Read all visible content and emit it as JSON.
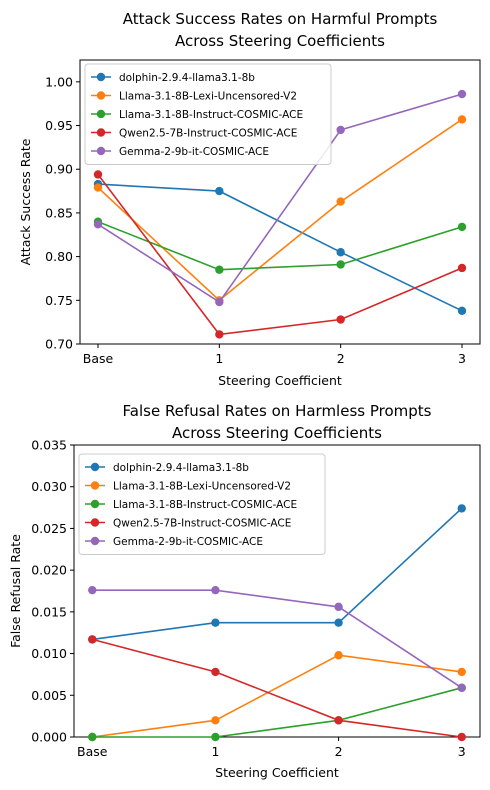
{
  "chart_data": [
    {
      "type": "line",
      "title": [
        "Attack Success Rates on Harmful Prompts",
        "Across Steering Coefficients"
      ],
      "xlabel": "Steering Coefficient",
      "ylabel": "Attack Success Rate",
      "categories": [
        "Base",
        "1",
        "2",
        "3"
      ],
      "ylim": [
        0.7,
        1.025
      ],
      "yticks": [
        0.7,
        0.75,
        0.8,
        0.85,
        0.9,
        0.95,
        1.0
      ],
      "ytick_labels": [
        "0.70",
        "0.75",
        "0.80",
        "0.85",
        "0.90",
        "0.95",
        "1.00"
      ],
      "legend_position": "top-left",
      "grid": false,
      "series": [
        {
          "name": "dolphin-2.9.4-llama3.1-8b",
          "color": "#1f77b4",
          "values": [
            0.883,
            0.875,
            0.805,
            0.738
          ]
        },
        {
          "name": "Llama-3.1-8B-Lexi-Uncensored-V2",
          "color": "#ff7f0e",
          "values": [
            0.879,
            0.75,
            0.863,
            0.957
          ]
        },
        {
          "name": "Llama-3.1-8B-Instruct-COSMIC-ACE",
          "color": "#2ca02c",
          "values": [
            0.84,
            0.785,
            0.791,
            0.834
          ]
        },
        {
          "name": "Qwen2.5-7B-Instruct-COSMIC-ACE",
          "color": "#d62728",
          "values": [
            0.894,
            0.711,
            0.728,
            0.787
          ]
        },
        {
          "name": "Gemma-2-9b-it-COSMIC-ACE",
          "color": "#9467bd",
          "values": [
            0.837,
            0.748,
            0.945,
            0.986
          ]
        }
      ]
    },
    {
      "type": "line",
      "title": [
        "False Refusal Rates on Harmless Prompts",
        "Across Steering Coefficients"
      ],
      "xlabel": "Steering Coefficient",
      "ylabel": "False Refusal Rate",
      "categories": [
        "Base",
        "1",
        "2",
        "3"
      ],
      "ylim": [
        0.0,
        0.035
      ],
      "yticks": [
        0.0,
        0.005,
        0.01,
        0.015,
        0.02,
        0.025,
        0.03,
        0.035
      ],
      "ytick_labels": [
        "0.000",
        "0.005",
        "0.010",
        "0.015",
        "0.020",
        "0.025",
        "0.030",
        "0.035"
      ],
      "legend_position": "top-left",
      "grid": false,
      "series": [
        {
          "name": "dolphin-2.9.4-llama3.1-8b",
          "color": "#1f77b4",
          "values": [
            0.0117,
            0.0137,
            0.0137,
            0.0274
          ]
        },
        {
          "name": "Llama-3.1-8B-Lexi-Uncensored-V2",
          "color": "#ff7f0e",
          "values": [
            0.0,
            0.002,
            0.0098,
            0.0078
          ]
        },
        {
          "name": "Llama-3.1-8B-Instruct-COSMIC-ACE",
          "color": "#2ca02c",
          "values": [
            0.0,
            0.0,
            0.002,
            0.0059
          ]
        },
        {
          "name": "Qwen2.5-7B-Instruct-COSMIC-ACE",
          "color": "#d62728",
          "values": [
            0.0117,
            0.0078,
            0.002,
            0.0
          ]
        },
        {
          "name": "Gemma-2-9b-it-COSMIC-ACE",
          "color": "#9467bd",
          "values": [
            0.0176,
            0.0176,
            0.0156,
            0.0059
          ]
        }
      ]
    }
  ]
}
